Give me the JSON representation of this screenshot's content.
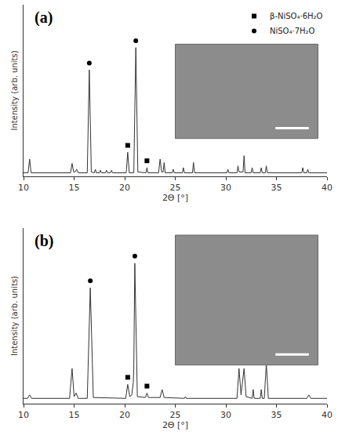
{
  "chart_data": [
    {
      "type": "line",
      "title": "(a)",
      "x_label": "2Θ [°]",
      "y_label": "Intensity (arb. units)",
      "color": "#333333",
      "tick_labels": "x",
      "grid": false,
      "legend": "upper right",
      "xlim": [
        10,
        40
      ],
      "xticks": [
        10,
        15,
        20,
        25,
        30,
        35,
        40
      ],
      "ylim": [
        0,
        100
      ],
      "yticks": [],
      "x": [
        10,
        10.45,
        10.6,
        10.75,
        14.65,
        14.8,
        14.95,
        15.1,
        15.25,
        15.4,
        16.3,
        16.5,
        16.7,
        17.0,
        17.1,
        17.2,
        17.5,
        17.6,
        17.7,
        18.1,
        18.2,
        18.3,
        18.6,
        18.7,
        18.8,
        20.15,
        20.3,
        20.45,
        20.9,
        21.1,
        21.3,
        22.1,
        22.2,
        22.3,
        23.35,
        23.5,
        23.65,
        23.8,
        23.9,
        24.0,
        24.7,
        24.8,
        24.9,
        25.7,
        25.8,
        25.9,
        26.7,
        26.8,
        26.9,
        30.1,
        30.2,
        30.3,
        31.1,
        31.2,
        31.3,
        31.7,
        31.8,
        31.9,
        32.5,
        32.6,
        32.7,
        33.4,
        33.5,
        33.6,
        33.9,
        34.0,
        34.1,
        37.5,
        37.6,
        37.7,
        38.0,
        38.1,
        38.2,
        40
      ],
      "values": [
        2,
        2,
        10,
        2,
        2,
        7.5,
        2.5,
        2.5,
        4,
        2,
        2,
        62,
        2.5,
        2,
        4,
        2,
        2,
        3.5,
        2,
        2,
        3.5,
        2,
        2,
        3.5,
        2,
        2,
        14,
        2,
        2,
        75,
        2.5,
        2,
        5,
        2,
        2,
        10,
        2.5,
        2.5,
        8,
        2,
        2,
        4,
        2,
        2,
        5,
        2,
        2,
        8,
        2,
        2,
        4,
        2,
        2,
        6,
        2.5,
        2.5,
        12,
        2,
        2,
        5,
        2,
        2,
        5,
        2,
        2,
        6,
        2,
        2,
        5,
        2,
        2,
        4,
        2,
        2
      ],
      "peak_marks": [
        {
          "name": "β-NiSO₄·6H₂O",
          "marker": "square",
          "color": "#000000",
          "x": [
            20.3,
            22.2
          ],
          "values": [
            18,
            9
          ]
        },
        {
          "name": "NiSO₄·7H₂O",
          "marker": "circle",
          "color": "#000000",
          "x": [
            16.5,
            21.1
          ],
          "values": [
            66,
            79
          ]
        }
      ]
    },
    {
      "type": "line",
      "title": "(b)",
      "x_label": "2Θ [°]",
      "y_label": "Intensity (arb. units)",
      "color": "#333333",
      "tick_labels": "x",
      "grid": false,
      "xlim": [
        10,
        40
      ],
      "xticks": [
        10,
        15,
        20,
        25,
        30,
        35,
        40
      ],
      "ylim": [
        0,
        100
      ],
      "yticks": [],
      "x": [
        10,
        10.4,
        10.6,
        10.8,
        14.55,
        14.8,
        15.0,
        15.2,
        15.4,
        16.3,
        16.6,
        16.9,
        20.1,
        20.3,
        20.5,
        20.7,
        20.85,
        20.9,
        21.0,
        21.25,
        22.05,
        22.2,
        22.35,
        23.5,
        23.7,
        23.9,
        25.9,
        26.0,
        26.1,
        31.1,
        31.3,
        31.5,
        31.8,
        32.0,
        32.6,
        32.7,
        32.8,
        33.4,
        33.5,
        33.6,
        33.8,
        34.0,
        34.2,
        38.0,
        38.2,
        38.4,
        40
      ],
      "values": [
        3,
        3,
        5,
        3,
        3,
        20,
        4,
        6,
        3,
        3,
        66,
        3.5,
        3,
        11,
        4,
        5,
        12,
        20,
        80,
        4,
        3.5,
        6,
        3.5,
        3.5,
        8,
        3.5,
        3,
        4,
        3,
        3,
        20,
        5,
        20,
        4,
        3,
        8,
        3,
        3,
        8,
        3,
        3,
        23,
        3,
        3,
        5,
        3,
        3
      ],
      "peak_marks": [
        {
          "name": "β-NiSO₄·6H₂O",
          "marker": "square",
          "color": "#000000",
          "x": [
            20.3,
            22.2
          ],
          "values": [
            15,
            10
          ]
        },
        {
          "name": "NiSO₄·7H₂O",
          "marker": "circle",
          "color": "#000000",
          "x": [
            16.6,
            21.0
          ],
          "values": [
            70,
            84
          ]
        }
      ]
    }
  ]
}
